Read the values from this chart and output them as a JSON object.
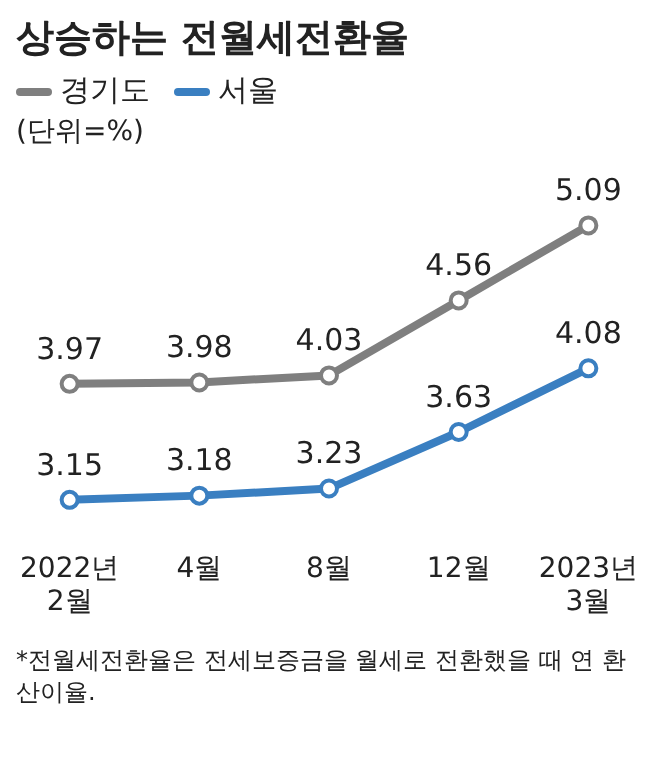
{
  "chart_data": {
    "type": "line",
    "title": "상승하는 전월세전환율",
    "ylabel": "(단위=%)",
    "categories": [
      "2022년\n2월",
      "4월",
      "8월",
      "12월",
      "2023년\n3월"
    ],
    "series": [
      {
        "name": "경기도",
        "color": "#7f7f7f",
        "values": [
          3.97,
          3.98,
          4.03,
          4.56,
          5.09
        ]
      },
      {
        "name": "서울",
        "color": "#3a7fc1",
        "values": [
          3.15,
          3.18,
          3.23,
          3.63,
          4.08
        ]
      }
    ],
    "data_labels": true,
    "marker": "circle",
    "line_style": "solid",
    "grid": false,
    "tick_labels": "x",
    "legend": "top left",
    "annotations": [
      "*전월세전환율은 전세보증금을 월세로 전환했을 때 연 환산이율."
    ]
  }
}
